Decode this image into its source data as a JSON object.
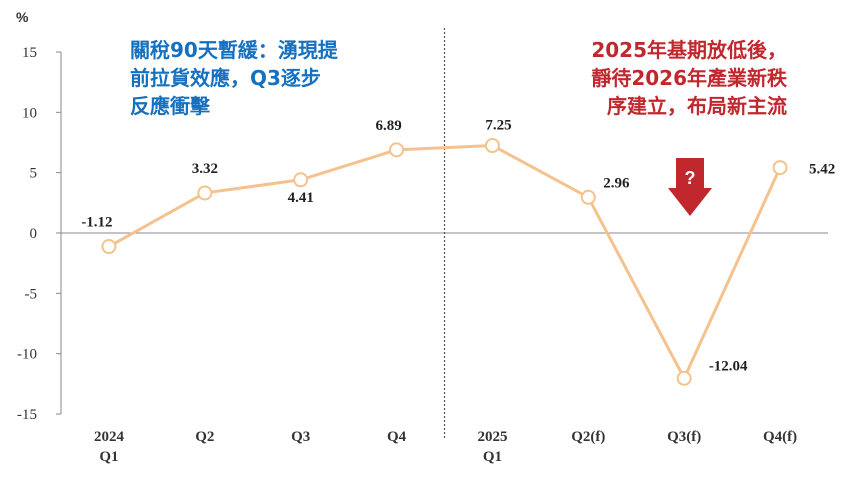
{
  "unit": "%",
  "notes": {
    "left": [
      "關稅90天暫緩：湧現提",
      "前拉貨效應，Q3逐步",
      "反應衝擊"
    ],
    "right": [
      "2025年基期放低後，",
      "靜待2026年產業新秩",
      "序建立，布局新主流"
    ]
  },
  "colors": {
    "line": "#f5c28e",
    "marker_fill": "#ffffff",
    "note_left": "#1570c0",
    "note_right": "#c0282e",
    "arrow": "#c0282e"
  },
  "arrow": {
    "symbol": "?",
    "icon": "down-arrow-icon"
  },
  "chart_data": {
    "type": "line",
    "categories": [
      {
        "line1": "2024",
        "line2": "Q1"
      },
      {
        "line1": "Q2",
        "line2": ""
      },
      {
        "line1": "Q3",
        "line2": ""
      },
      {
        "line1": "Q4",
        "line2": ""
      },
      {
        "line1": "2025",
        "line2": "Q1"
      },
      {
        "line1": "Q2(f)",
        "line2": ""
      },
      {
        "line1": "Q3(f)",
        "line2": ""
      },
      {
        "line1": "Q4(f)",
        "line2": ""
      }
    ],
    "values": [
      -1.12,
      3.32,
      4.41,
      6.89,
      7.25,
      2.96,
      -12.04,
      5.42
    ],
    "data_labels": [
      "-1.12",
      "3.32",
      "4.41",
      "6.89",
      "7.25",
      "2.96",
      "-12.04",
      "5.42"
    ],
    "ylim": [
      -15,
      15
    ],
    "yticks": [
      15,
      10,
      5,
      0,
      -5,
      -10,
      -15
    ],
    "ylabel": "%",
    "grid": false,
    "divider_between": [
      3,
      4
    ]
  }
}
